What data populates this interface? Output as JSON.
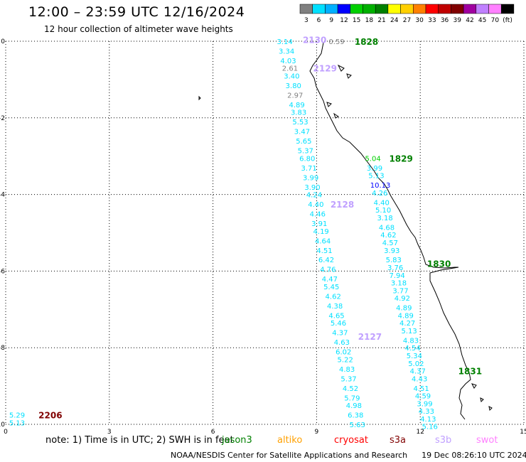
{
  "title": "12:00 – 23:59 UTC 12/16/2024",
  "subtitle": "12 hour collection of altimeter wave heights",
  "legend": {
    "unit": "(ft)",
    "bins": [
      {
        "label": "3",
        "color": "#808080"
      },
      {
        "label": "6",
        "color": "#00e0ff"
      },
      {
        "label": "9",
        "color": "#00b0ff"
      },
      {
        "label": "12",
        "color": "#0000ff"
      },
      {
        "label": "15",
        "color": "#00d000"
      },
      {
        "label": "18",
        "color": "#00b000"
      },
      {
        "label": "21",
        "color": "#008000"
      },
      {
        "label": "24",
        "color": "#ffff00"
      },
      {
        "label": "27",
        "color": "#ffd000"
      },
      {
        "label": "30",
        "color": "#ff8000"
      },
      {
        "label": "33",
        "color": "#ff0000"
      },
      {
        "label": "36",
        "color": "#c00000"
      },
      {
        "label": "39",
        "color": "#800000"
      },
      {
        "label": "42",
        "color": "#a000a0"
      },
      {
        "label": "45",
        "color": "#c080ff"
      },
      {
        "label": "70",
        "color": "#ff80ff"
      },
      {
        "label": "",
        "color": "#000000"
      }
    ]
  },
  "axes": {
    "x_ticks": [
      "0",
      "3",
      "6",
      "9",
      "12",
      "15"
    ],
    "y_ticks": [
      "0",
      "-2",
      "-4",
      "-6",
      "-8",
      "-10"
    ],
    "x_range": [
      0,
      15
    ],
    "y_range": [
      0,
      -10
    ]
  },
  "pass_labels": [
    {
      "text": "2130",
      "color": "#c0a0ff",
      "x": 8.6,
      "y": 0.05
    },
    {
      "text": "1828",
      "color": "#008000",
      "x": 10.1,
      "y": 0.0
    },
    {
      "text": "2129",
      "color": "#c0a0ff",
      "x": 8.9,
      "y": -0.7
    },
    {
      "text": "1829",
      "color": "#008000",
      "x": 11.1,
      "y": -3.05
    },
    {
      "text": "2128",
      "color": "#c0a0ff",
      "x": 9.4,
      "y": -4.25
    },
    {
      "text": "1830",
      "color": "#008000",
      "x": 12.2,
      "y": -5.8
    },
    {
      "text": "2127",
      "color": "#c0a0ff",
      "x": 10.2,
      "y": -7.7
    },
    {
      "text": "1831",
      "color": "#008000",
      "x": 13.1,
      "y": -8.6
    },
    {
      "text": "2206",
      "color": "#800000",
      "x": 0.95,
      "y": -9.75
    }
  ],
  "wave_heights": {
    "track_a": [
      {
        "text": "3.14",
        "color": "#00e0ff",
        "x": 7.85,
        "y": 0.0
      },
      {
        "text": "3.34",
        "color": "#00e0ff",
        "x": 7.9,
        "y": -0.25
      },
      {
        "text": "4.03",
        "color": "#00e0ff",
        "x": 7.95,
        "y": -0.5
      },
      {
        "text": "2.61",
        "color": "#808080",
        "x": 8.0,
        "y": -0.7
      },
      {
        "text": "3.40",
        "color": "#00e0ff",
        "x": 8.05,
        "y": -0.9
      },
      {
        "text": "3.80",
        "color": "#00e0ff",
        "x": 8.1,
        "y": -1.15
      },
      {
        "text": "2.97",
        "color": "#808080",
        "x": 8.15,
        "y": -1.4
      },
      {
        "text": "4.89",
        "color": "#00e0ff",
        "x": 8.2,
        "y": -1.65
      },
      {
        "text": "3.83",
        "color": "#00e0ff",
        "x": 8.25,
        "y": -1.85
      },
      {
        "text": "5.53",
        "color": "#00e0ff",
        "x": 8.3,
        "y": -2.1
      },
      {
        "text": "3.47",
        "color": "#00e0ff",
        "x": 8.35,
        "y": -2.35
      },
      {
        "text": "5.65",
        "color": "#00e0ff",
        "x": 8.4,
        "y": -2.6
      },
      {
        "text": "5.37",
        "color": "#00e0ff",
        "x": 8.45,
        "y": -2.85
      },
      {
        "text": "6.80",
        "color": "#00e0ff",
        "x": 8.5,
        "y": -3.05
      },
      {
        "text": "3.71",
        "color": "#00e0ff",
        "x": 8.55,
        "y": -3.3
      },
      {
        "text": "3.99",
        "color": "#00e0ff",
        "x": 8.6,
        "y": -3.55
      },
      {
        "text": "3.90",
        "color": "#00e0ff",
        "x": 8.65,
        "y": -3.8
      },
      {
        "text": "4.24",
        "color": "#00e0ff",
        "x": 8.7,
        "y": -4.0
      },
      {
        "text": "4.40",
        "color": "#00e0ff",
        "x": 8.75,
        "y": -4.25
      },
      {
        "text": "4.46",
        "color": "#00e0ff",
        "x": 8.8,
        "y": -4.5
      },
      {
        "text": "3.91",
        "color": "#00e0ff",
        "x": 8.85,
        "y": -4.75
      },
      {
        "text": "4.19",
        "color": "#00e0ff",
        "x": 8.9,
        "y": -4.95
      },
      {
        "text": "4.64",
        "color": "#00e0ff",
        "x": 8.95,
        "y": -5.2
      },
      {
        "text": "4.51",
        "color": "#00e0ff",
        "x": 9.0,
        "y": -5.45
      },
      {
        "text": "6.42",
        "color": "#00e0ff",
        "x": 9.05,
        "y": -5.7
      },
      {
        "text": "4.76",
        "color": "#00e0ff",
        "x": 9.1,
        "y": -5.95
      },
      {
        "text": "4.47",
        "color": "#00e0ff",
        "x": 9.15,
        "y": -6.2
      },
      {
        "text": "5.45",
        "color": "#00e0ff",
        "x": 9.2,
        "y": -6.4
      },
      {
        "text": "4.62",
        "color": "#00e0ff",
        "x": 9.25,
        "y": -6.65
      },
      {
        "text": "4.38",
        "color": "#00e0ff",
        "x": 9.3,
        "y": -6.9
      },
      {
        "text": "4.65",
        "color": "#00e0ff",
        "x": 9.35,
        "y": -7.15
      },
      {
        "text": "5.46",
        "color": "#00e0ff",
        "x": 9.4,
        "y": -7.35
      },
      {
        "text": "4.37",
        "color": "#00e0ff",
        "x": 9.45,
        "y": -7.6
      },
      {
        "text": "4.63",
        "color": "#00e0ff",
        "x": 9.5,
        "y": -7.85
      },
      {
        "text": "6.02",
        "color": "#00e0ff",
        "x": 9.55,
        "y": -8.1
      },
      {
        "text": "5.22",
        "color": "#00e0ff",
        "x": 9.6,
        "y": -8.3
      },
      {
        "text": "4.83",
        "color": "#00e0ff",
        "x": 9.65,
        "y": -8.55
      },
      {
        "text": "5.37",
        "color": "#00e0ff",
        "x": 9.7,
        "y": -8.8
      },
      {
        "text": "4.52",
        "color": "#00e0ff",
        "x": 9.75,
        "y": -9.05
      },
      {
        "text": "5.79",
        "color": "#00e0ff",
        "x": 9.8,
        "y": -9.3
      },
      {
        "text": "4.98",
        "color": "#00e0ff",
        "x": 9.85,
        "y": -9.5
      },
      {
        "text": "6.38",
        "color": "#00e0ff",
        "x": 9.9,
        "y": -9.75
      },
      {
        "text": "5.63",
        "color": "#00e0ff",
        "x": 9.95,
        "y": -10.0
      }
    ],
    "track_b": [
      {
        "text": "0.59",
        "color": "#808080",
        "x": 9.35,
        "y": 0.0
      },
      {
        "text": "5.04",
        "color": "#00d000",
        "x": 10.4,
        "y": -3.05
      },
      {
        "text": "3.99",
        "color": "#00e0ff",
        "x": 10.45,
        "y": -3.3
      },
      {
        "text": "5.13",
        "color": "#00e0ff",
        "x": 10.5,
        "y": -3.5
      },
      {
        "text": "10.13",
        "color": "#0000ff",
        "x": 10.55,
        "y": -3.75
      },
      {
        "text": "4.26",
        "color": "#00e0ff",
        "x": 10.6,
        "y": -3.95
      },
      {
        "text": "4.40",
        "color": "#00e0ff",
        "x": 10.65,
        "y": -4.2
      },
      {
        "text": "5.10",
        "color": "#00e0ff",
        "x": 10.7,
        "y": -4.4
      },
      {
        "text": "3.18",
        "color": "#00e0ff",
        "x": 10.75,
        "y": -4.6
      },
      {
        "text": "4.68",
        "color": "#00e0ff",
        "x": 10.8,
        "y": -4.85
      },
      {
        "text": "4.62",
        "color": "#00e0ff",
        "x": 10.85,
        "y": -5.05
      },
      {
        "text": "4.57",
        "color": "#00e0ff",
        "x": 10.9,
        "y": -5.25
      },
      {
        "text": "3.93",
        "color": "#00e0ff",
        "x": 10.95,
        "y": -5.45
      },
      {
        "text": "5.83",
        "color": "#00e0ff",
        "x": 11.0,
        "y": -5.7
      },
      {
        "text": "3.76",
        "color": "#00e0ff",
        "x": 11.05,
        "y": -5.9
      },
      {
        "text": "7.94",
        "color": "#00e0ff",
        "x": 11.1,
        "y": -6.1
      },
      {
        "text": "3.18",
        "color": "#00e0ff",
        "x": 11.15,
        "y": -6.3
      },
      {
        "text": "3.77",
        "color": "#00e0ff",
        "x": 11.2,
        "y": -6.5
      },
      {
        "text": "4.92",
        "color": "#00e0ff",
        "x": 11.25,
        "y": -6.7
      },
      {
        "text": "4.89",
        "color": "#00e0ff",
        "x": 11.3,
        "y": -6.95
      },
      {
        "text": "4.89",
        "color": "#00e0ff",
        "x": 11.35,
        "y": -7.15
      },
      {
        "text": "4.27",
        "color": "#00e0ff",
        "x": 11.4,
        "y": -7.35
      },
      {
        "text": "5.13",
        "color": "#00e0ff",
        "x": 11.45,
        "y": -7.55
      },
      {
        "text": "4.83",
        "color": "#00e0ff",
        "x": 11.5,
        "y": -7.8
      },
      {
        "text": "4.54",
        "color": "#00e0ff",
        "x": 11.55,
        "y": -8.0
      },
      {
        "text": "5.34",
        "color": "#00e0ff",
        "x": 11.6,
        "y": -8.2
      },
      {
        "text": "5.02",
        "color": "#00e0ff",
        "x": 11.65,
        "y": -8.4
      },
      {
        "text": "4.37",
        "color": "#00e0ff",
        "x": 11.7,
        "y": -8.6
      },
      {
        "text": "4.43",
        "color": "#00e0ff",
        "x": 11.75,
        "y": -8.8
      },
      {
        "text": "4.51",
        "color": "#00e0ff",
        "x": 11.8,
        "y": -9.05
      },
      {
        "text": "4.59",
        "color": "#00e0ff",
        "x": 11.85,
        "y": -9.25
      },
      {
        "text": "3.99",
        "color": "#00e0ff",
        "x": 11.9,
        "y": -9.45
      },
      {
        "text": "4.33",
        "color": "#00e0ff",
        "x": 11.95,
        "y": -9.65
      },
      {
        "text": "4.13",
        "color": "#00e0ff",
        "x": 12.0,
        "y": -9.85
      },
      {
        "text": "5.16",
        "color": "#00e0ff",
        "x": 12.05,
        "y": -10.05
      }
    ],
    "corner": [
      {
        "text": "5.29",
        "color": "#00e0ff",
        "x": 0.1,
        "y": -9.75
      },
      {
        "text": "5.13",
        "color": "#00e0ff",
        "x": 0.1,
        "y": -9.95
      }
    ]
  },
  "footer": {
    "note_prefix": "note:  1) Time is in UTC; 2) SWH is in feet",
    "missions": [
      {
        "text": "jason3",
        "color": "#008000"
      },
      {
        "text": "altiko",
        "color": "#ffa000"
      },
      {
        "text": "cryosat",
        "color": "#ff0000"
      },
      {
        "text": "s3a",
        "color": "#800000"
      },
      {
        "text": "s3b",
        "color": "#c0a0ff"
      },
      {
        "text": "swot",
        "color": "#ff80ff"
      }
    ],
    "credit": "NOAA/NESDIS Center for Satellite Applications and Research",
    "timestamp": "19 Dec 08:26:10 UTC 2024"
  }
}
